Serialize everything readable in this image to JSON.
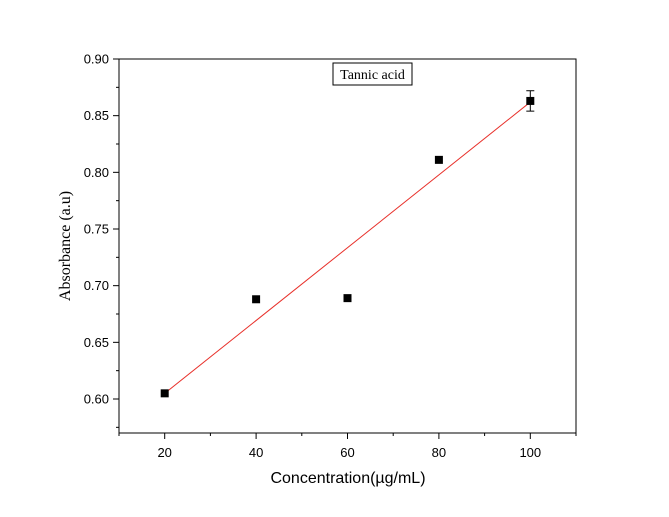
{
  "chart_data": {
    "type": "scatter",
    "title": "",
    "xlabel": "Concentration(µg/mL)",
    "ylabel": "Absorbance (a.u)",
    "xlim": [
      10,
      110
    ],
    "ylim": [
      0.57,
      0.9
    ],
    "xticks": [
      20,
      40,
      60,
      80,
      100
    ],
    "xtick_labels": [
      "20",
      "40",
      "60",
      "80",
      "100"
    ],
    "yticks": [
      0.6,
      0.65,
      0.7,
      0.75,
      0.8,
      0.85,
      0.9
    ],
    "ytick_labels": [
      "0.60",
      "0.65",
      "0.70",
      "0.75",
      "0.80",
      "0.85",
      "0.90"
    ],
    "grid": false,
    "legend_position": "top-center",
    "series": [
      {
        "name": "Tannic acid",
        "x": [
          20,
          40,
          60,
          80,
          100
        ],
        "y": [
          0.605,
          0.688,
          0.689,
          0.811,
          0.863
        ],
        "error": [
          0,
          0,
          0,
          0,
          0.009
        ],
        "marker": "square",
        "color": "#000000"
      }
    ],
    "fit_line": {
      "x": [
        20,
        100
      ],
      "y": [
        0.605,
        0.862
      ],
      "color": "#e8302a"
    }
  }
}
